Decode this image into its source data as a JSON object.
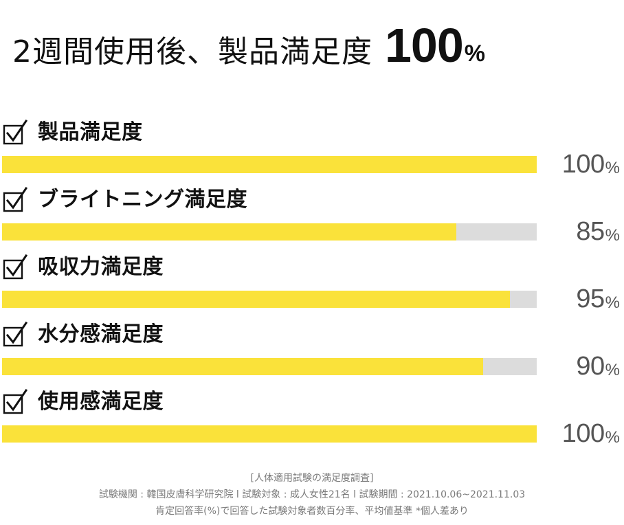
{
  "title": {
    "text": "2週間使用後、製品満足度",
    "value": "100",
    "unit": "%"
  },
  "chart_data": {
    "type": "bar",
    "categories": [
      "製品満足度",
      "ブライトニング満足度",
      "吸収力満足度",
      "水分感満足度",
      "使用感満足度"
    ],
    "values": [
      100,
      85,
      95,
      90,
      100
    ],
    "value_labels": [
      "100",
      "85",
      "95",
      "90",
      "100"
    ],
    "unit": "%",
    "xlim": [
      0,
      100
    ],
    "orientation": "horizontal",
    "grid": false,
    "legend": "none",
    "colors": {
      "bar": "#fae23a",
      "track": "#dcdcdc",
      "value_text": "#555555"
    },
    "icon": "checkbox-icon"
  },
  "footnote": {
    "lines": [
      "[人体適用試験の満足度調査]",
      "試験機関 : 韓国皮膚科学研究院 l 試験対象 : 成人女性21名 l 試験期間 : 2021.10.06~2021.11.03",
      "肯定回答率(%)で回答した試験対象者数百分率、平均値基準 *個人差あり"
    ]
  }
}
